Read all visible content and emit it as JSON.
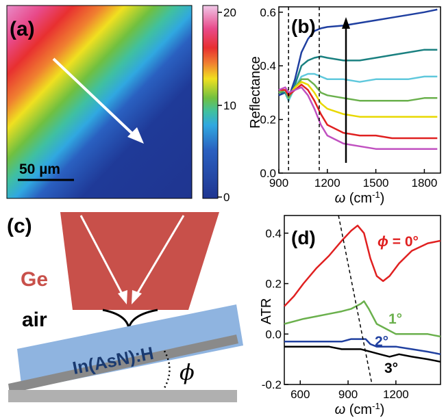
{
  "panel_a": {
    "label": "(a)",
    "scalebar_text": "50 µm",
    "colorbar_ticks": [
      "20",
      "10",
      "0"
    ]
  },
  "panel_b": {
    "label": "(b)",
    "ylabel": "Reflectance",
    "xlabel_base": "ω (cm",
    "xlabel_sup": "-1",
    "xlabel_end": ")"
  },
  "panel_c": {
    "label": "(c)",
    "ge_text": "Ge",
    "air_text": "air",
    "sample_text": "In(AsN):H",
    "angle_symbol": "ϕ"
  },
  "panel_d": {
    "label": "(d)",
    "ylabel": "ATR",
    "xlabel_base": "ω (cm",
    "xlabel_sup": "-1",
    "xlabel_end": ")",
    "annotations": [
      "ϕ = 0°",
      "1°",
      "2°",
      "3°"
    ]
  },
  "chart_data": [
    {
      "type": "line",
      "panel": "b",
      "xlabel": "ω (cm-1)",
      "ylabel": "Reflectance",
      "xlim": [
        900,
        1900
      ],
      "ylim": [
        0.0,
        0.62
      ],
      "xticks": [
        "900",
        "1200",
        "1500",
        "1800"
      ],
      "yticks": [
        "0.0",
        "0.2",
        "0.4",
        "0.6"
      ],
      "vlines_dashed": [
        960,
        1150
      ],
      "series": [
        {
          "color": "#1f3fa0",
          "x": [
            900,
            940,
            960,
            1000,
            1040,
            1080,
            1120,
            1160,
            1200,
            1300,
            1400,
            1500,
            1600,
            1700,
            1800,
            1880
          ],
          "y": [
            0.29,
            0.3,
            0.28,
            0.35,
            0.45,
            0.5,
            0.53,
            0.54,
            0.545,
            0.55,
            0.56,
            0.57,
            0.58,
            0.59,
            0.6,
            0.61
          ]
        },
        {
          "color": "#1a8080",
          "x": [
            900,
            940,
            960,
            1000,
            1040,
            1080,
            1120,
            1160,
            1200,
            1300,
            1400,
            1500,
            1600,
            1700,
            1800,
            1880
          ],
          "y": [
            0.3,
            0.3,
            0.27,
            0.33,
            0.4,
            0.42,
            0.43,
            0.435,
            0.43,
            0.42,
            0.42,
            0.43,
            0.44,
            0.45,
            0.46,
            0.46
          ]
        },
        {
          "color": "#5fc8dc",
          "x": [
            900,
            940,
            960,
            1000,
            1040,
            1080,
            1120,
            1160,
            1200,
            1300,
            1400,
            1500,
            1600,
            1700,
            1800,
            1880
          ],
          "y": [
            0.3,
            0.31,
            0.27,
            0.32,
            0.36,
            0.37,
            0.37,
            0.36,
            0.35,
            0.35,
            0.34,
            0.35,
            0.35,
            0.35,
            0.36,
            0.36
          ]
        },
        {
          "color": "#6ab04c",
          "x": [
            900,
            940,
            960,
            1000,
            1040,
            1080,
            1120,
            1160,
            1200,
            1300,
            1400,
            1500,
            1600,
            1700,
            1800,
            1880
          ],
          "y": [
            0.3,
            0.31,
            0.28,
            0.32,
            0.35,
            0.35,
            0.33,
            0.3,
            0.29,
            0.28,
            0.27,
            0.27,
            0.27,
            0.27,
            0.28,
            0.28
          ]
        },
        {
          "color": "#e8d800",
          "x": [
            900,
            940,
            960,
            1000,
            1040,
            1080,
            1120,
            1160,
            1200,
            1300,
            1400,
            1500,
            1600,
            1700,
            1800,
            1880
          ],
          "y": [
            0.31,
            0.31,
            0.29,
            0.32,
            0.34,
            0.33,
            0.3,
            0.26,
            0.24,
            0.22,
            0.21,
            0.21,
            0.21,
            0.21,
            0.21,
            0.21
          ]
        },
        {
          "color": "#e02020",
          "x": [
            900,
            940,
            960,
            1000,
            1040,
            1080,
            1120,
            1160,
            1200,
            1300,
            1400,
            1500,
            1600,
            1700,
            1800,
            1880
          ],
          "y": [
            0.31,
            0.31,
            0.29,
            0.31,
            0.33,
            0.31,
            0.27,
            0.22,
            0.18,
            0.15,
            0.14,
            0.14,
            0.13,
            0.13,
            0.13,
            0.13
          ]
        },
        {
          "color": "#c050c0",
          "x": [
            900,
            940,
            960,
            1000,
            1040,
            1080,
            1120,
            1160,
            1200,
            1300,
            1400,
            1500,
            1600,
            1700,
            1800,
            1880
          ],
          "y": [
            0.31,
            0.32,
            0.3,
            0.31,
            0.32,
            0.29,
            0.24,
            0.18,
            0.14,
            0.11,
            0.1,
            0.09,
            0.09,
            0.09,
            0.09,
            0.09
          ]
        }
      ]
    },
    {
      "type": "line",
      "panel": "d",
      "xlabel": "ω (cm-1)",
      "ylabel": "ATR",
      "xlim": [
        500,
        1480
      ],
      "ylim": [
        -0.2,
        0.47
      ],
      "xticks": [
        "600",
        "900",
        "1200"
      ],
      "yticks": [
        "-0.2",
        "0.0",
        "0.2",
        "0.4"
      ],
      "dashed_line": {
        "x": [
          840,
          1050
        ],
        "y": [
          0.47,
          -0.2
        ]
      },
      "series": [
        {
          "name": "ϕ = 0°",
          "color": "#e02020",
          "x": [
            500,
            560,
            620,
            700,
            780,
            860,
            920,
            960,
            1000,
            1040,
            1080,
            1120,
            1160,
            1220,
            1300,
            1400,
            1480
          ],
          "y": [
            0.11,
            0.15,
            0.2,
            0.26,
            0.31,
            0.37,
            0.41,
            0.43,
            0.4,
            0.3,
            0.23,
            0.21,
            0.23,
            0.28,
            0.33,
            0.36,
            0.37
          ]
        },
        {
          "name": "1°",
          "color": "#6ab04c",
          "x": [
            500,
            560,
            620,
            700,
            780,
            860,
            920,
            980,
            1000,
            1030,
            1080,
            1140,
            1200,
            1300,
            1400,
            1480
          ],
          "y": [
            0.04,
            0.05,
            0.06,
            0.07,
            0.08,
            0.09,
            0.1,
            0.12,
            0.13,
            0.1,
            0.04,
            0.02,
            0.0,
            0.0,
            0.0,
            -0.01
          ]
        },
        {
          "name": "2°",
          "color": "#2040a0",
          "x": [
            500,
            560,
            620,
            700,
            780,
            860,
            920,
            980,
            1010,
            1040,
            1080,
            1140,
            1200,
            1300,
            1400,
            1480
          ],
          "y": [
            -0.03,
            -0.03,
            -0.03,
            -0.03,
            -0.03,
            -0.03,
            -0.02,
            -0.02,
            -0.02,
            -0.04,
            -0.05,
            -0.05,
            -0.05,
            -0.06,
            -0.07,
            -0.08
          ]
        },
        {
          "name": "3°",
          "color": "#000000",
          "x": [
            500,
            560,
            620,
            700,
            780,
            860,
            920,
            980,
            1040,
            1100,
            1160,
            1220,
            1300,
            1400,
            1480
          ],
          "y": [
            -0.05,
            -0.05,
            -0.05,
            -0.05,
            -0.05,
            -0.06,
            -0.06,
            -0.06,
            -0.07,
            -0.08,
            -0.09,
            -0.08,
            -0.09,
            -0.1,
            -0.11
          ]
        }
      ]
    }
  ]
}
